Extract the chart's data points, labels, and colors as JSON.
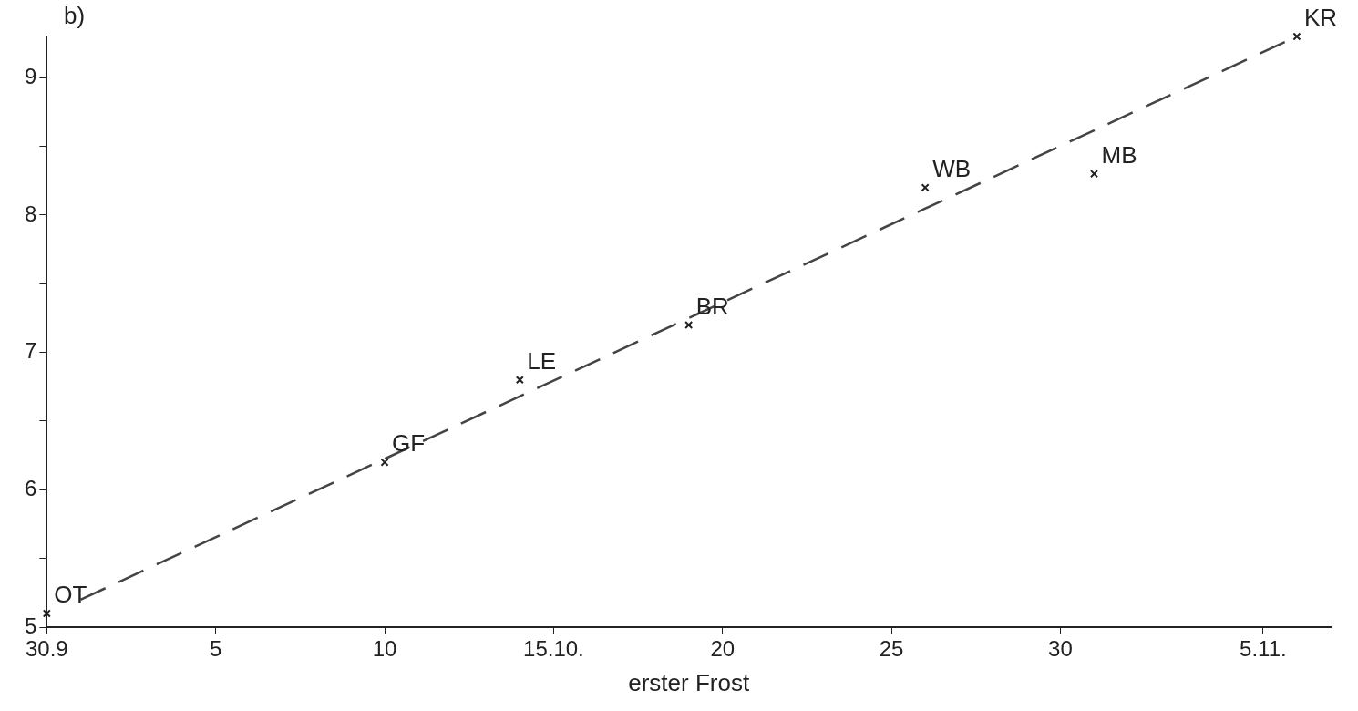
{
  "chart_data": {
    "type": "scatter",
    "xlabel": "erster Frost",
    "annotations": [
      "b)",
      {
        "text": "OT",
        "x": "--09-30",
        "y": 5.1
      },
      {
        "text": "GF",
        "x": "--10-10",
        "y": 6.2
      },
      {
        "text": "LE",
        "x": "--10-14",
        "y": 6.8
      },
      {
        "text": "BR",
        "x": "--10-19",
        "y": 7.2
      },
      {
        "text": "WB",
        "x": "--10-26",
        "y": 8.2
      },
      {
        "text": "MB",
        "x": "--10-31",
        "y": 8.3
      },
      {
        "text": "KR",
        "x": "--11-06",
        "y": 9.3
      }
    ],
    "xlim": [
      "--09-30",
      "--11-07"
    ],
    "xticks": [
      {
        "value": "--09-30",
        "label": "30.9"
      },
      {
        "value": "--10-05",
        "label": "5"
      },
      {
        "value": "--10-10",
        "label": "10"
      },
      {
        "value": "--10-15",
        "label": "15.10."
      },
      {
        "value": "--10-20",
        "label": "20"
      },
      {
        "value": "--10-25",
        "label": "25"
      },
      {
        "value": "--10-30",
        "label": "30"
      },
      {
        "value": "--11-05",
        "label": "5.11."
      }
    ],
    "ylim": [
      5,
      9.3
    ],
    "yticks": [
      5,
      {
        "value": 5.5,
        "label": null
      },
      6,
      {
        "value": 6.5,
        "label": null
      },
      7,
      {
        "value": 7.5,
        "label": null
      },
      8,
      {
        "value": 8.5,
        "label": null
      },
      9
    ],
    "grid": false,
    "series": [
      {
        "color": "#222222",
        "marker": "cross",
        "x": [
          "--09-30",
          "--10-10",
          "--10-14",
          "--10-19",
          "--10-26",
          "--10-31",
          "--11-06"
        ],
        "values": [
          5.1,
          6.2,
          6.8,
          7.2,
          8.2,
          8.3,
          9.3
        ]
      },
      {
        "type": "line",
        "color": "#444444",
        "line_style": "dashed",
        "marker": "none",
        "x": [
          "--10-01",
          "--11-06"
        ],
        "values": [
          5.2,
          9.3
        ]
      }
    ]
  }
}
